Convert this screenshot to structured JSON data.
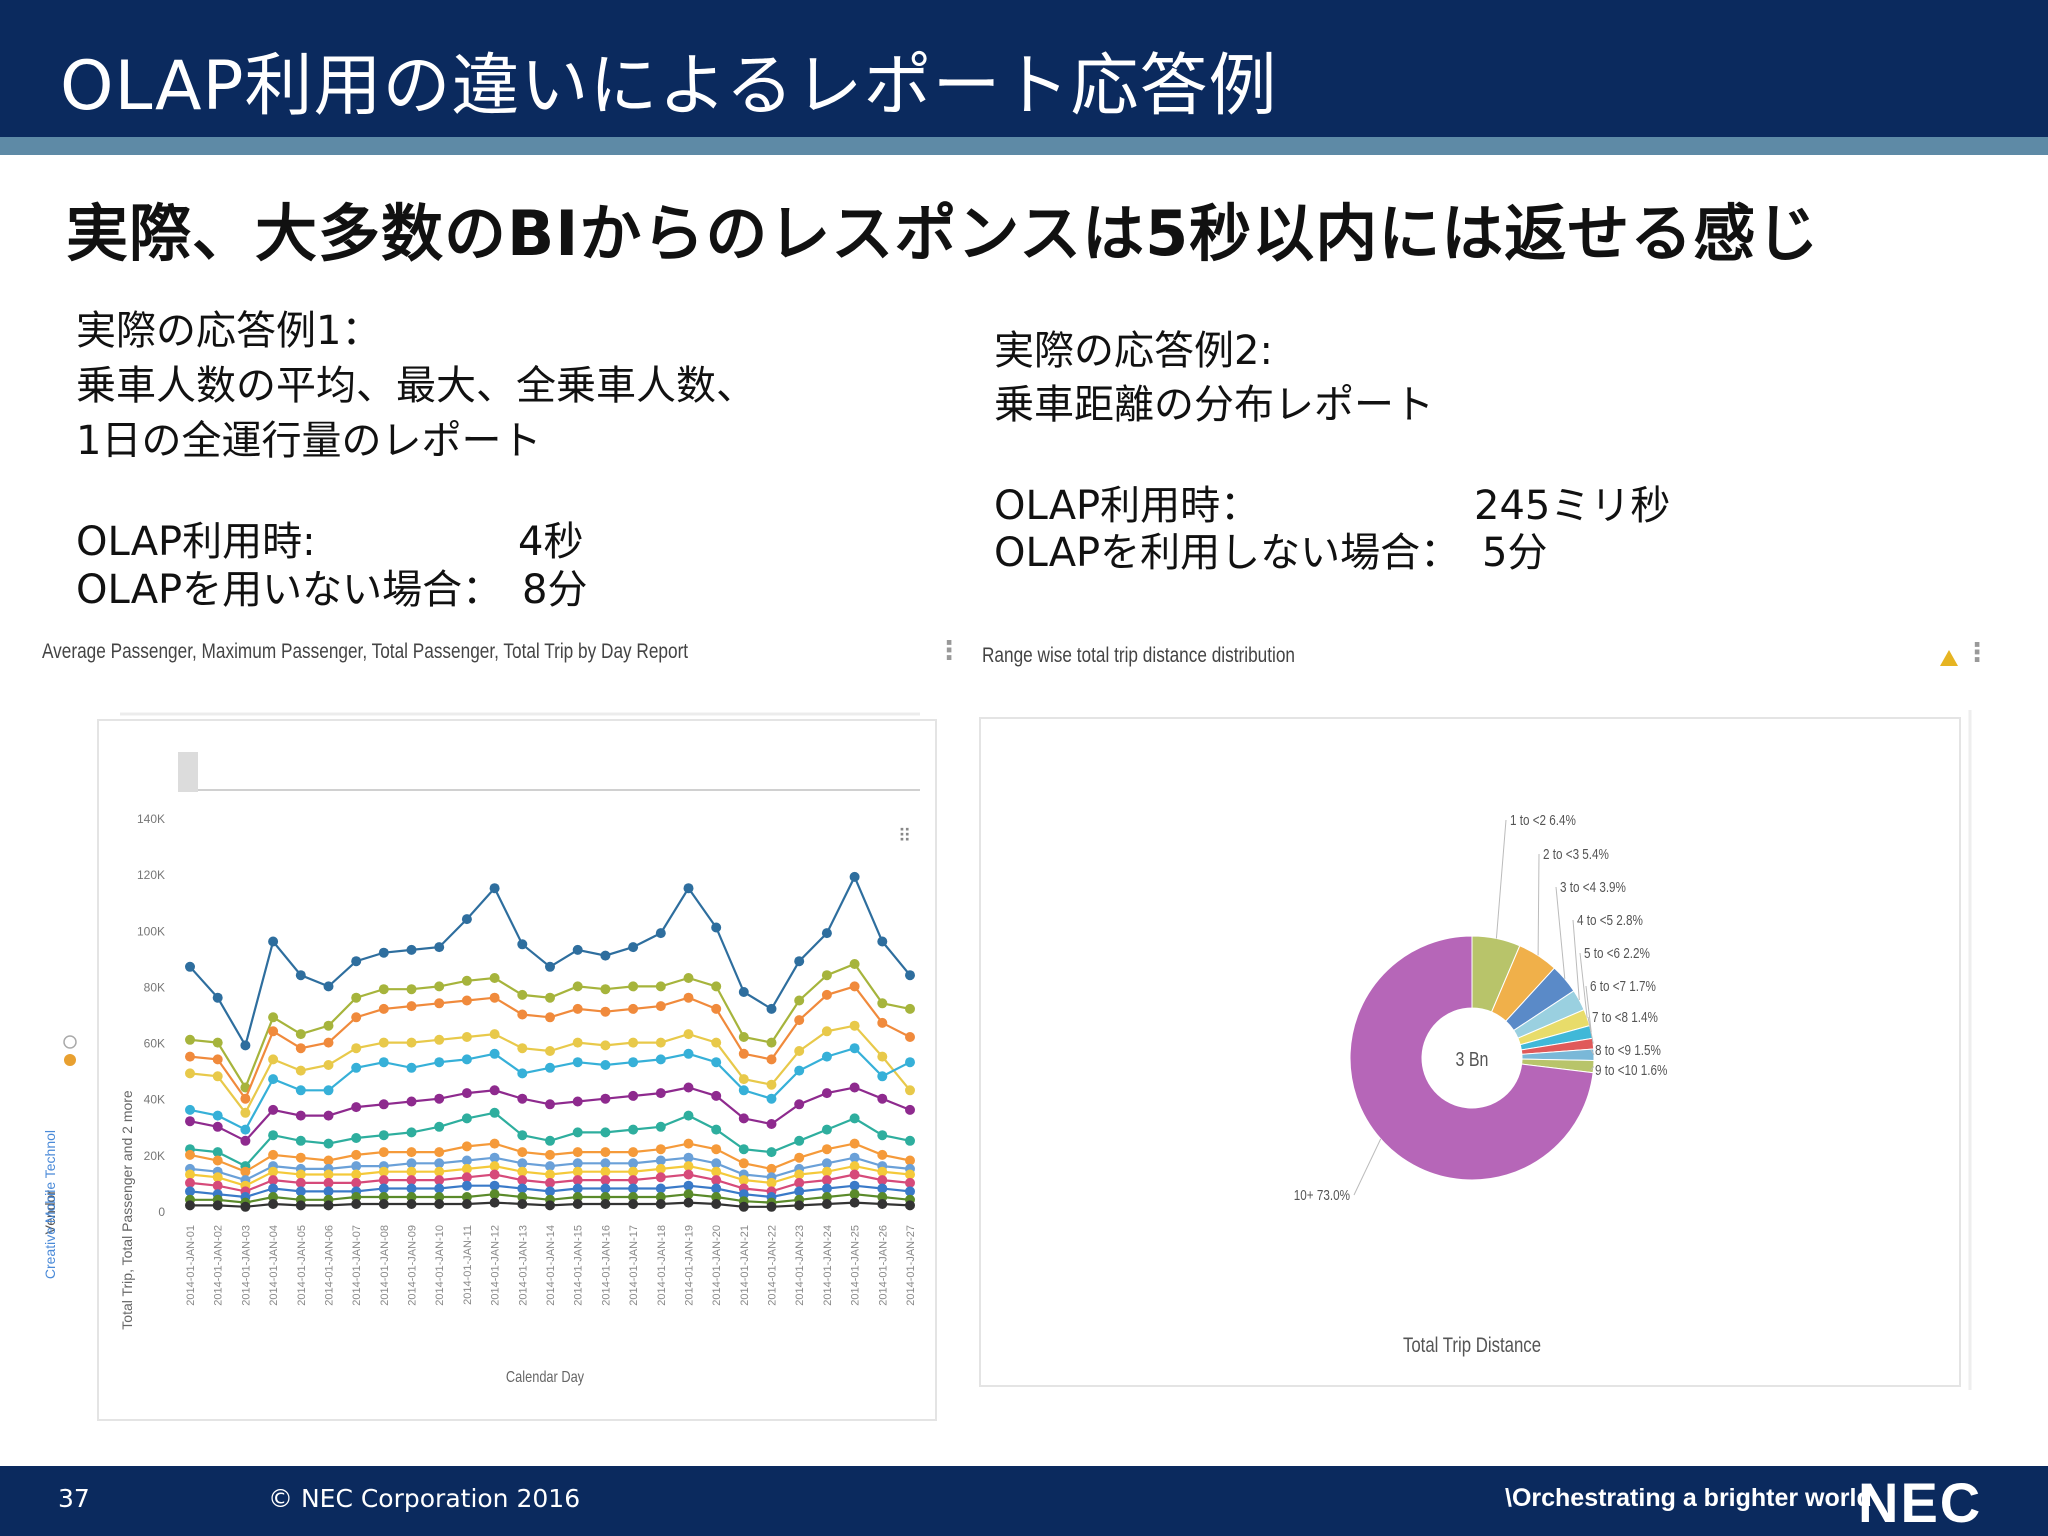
{
  "slide": {
    "title": "OLAP利用の違いによるレポート応答例",
    "headline": "実際、大多数のBIからのレスポンスは5秒以内には返せる感じ"
  },
  "example1": {
    "lines": [
      "実際の応答例1：",
      "乗車人数の平均、最大、全乗車人数、",
      "1日の全運行量のレポート"
    ],
    "olap_label": "OLAP利用時:",
    "olap_value": "4秒",
    "no_olap_label": "OLAPを用いない場合：",
    "no_olap_value": "8分"
  },
  "example2": {
    "lines": [
      "実際の応答例2:",
      "乗車距離の分布レポート"
    ],
    "olap_label": "OLAP利用時：",
    "olap_value": "245ミリ秒",
    "no_olap_label": "OLAPを利用しない場合：",
    "no_olap_value": "5分"
  },
  "line_panel": {
    "title": "Average Passenger, Maximum Passenger, Total Passenger, Total Trip by Day Report"
  },
  "pie_panel": {
    "title": "Range wise total trip distance distribution"
  },
  "footer": {
    "page_number": "37",
    "copyright": "© NEC Corporation 2016",
    "tagline": "\\Orchestrating a brighter world",
    "logo": "NEC"
  },
  "chart_data": [
    {
      "type": "line",
      "ylabel": "Total Trip, Total Passenger and 2 more",
      "xlabel": "Calendar Day",
      "legend_title": "Vendor",
      "legend_entries": [
        "Creative Mobile Technol"
      ],
      "ylim": [
        0,
        140000
      ],
      "y_ticks": [
        0,
        20000,
        40000,
        60000,
        80000,
        100000,
        120000,
        140000
      ],
      "y_tick_labels": [
        "0",
        "20K",
        "40K",
        "60K",
        "80K",
        "100K",
        "120K",
        "140K"
      ],
      "x": [
        "2014-01-JAN-01",
        "2014-01-JAN-02",
        "2014-01-JAN-03",
        "2014-01-JAN-04",
        "2014-01-JAN-05",
        "2014-01-JAN-06",
        "2014-01-JAN-07",
        "2014-01-JAN-08",
        "2014-01-JAN-09",
        "2014-01-JAN-10",
        "2014-01-JAN-11",
        "2014-01-JAN-12",
        "2014-01-JAN-13",
        "2014-01-JAN-14",
        "2014-01-JAN-15",
        "2014-01-JAN-16",
        "2014-01-JAN-17",
        "2014-01-JAN-18",
        "2014-01-JAN-19",
        "2014-01-JAN-20",
        "2014-01-JAN-21",
        "2014-01-JAN-22",
        "2014-01-JAN-23",
        "2014-01-JAN-24",
        "2014-01-JAN-25",
        "2014-01-JAN-26",
        "2014-01-JAN-27"
      ],
      "series": [
        {
          "color": "#2e6e9e",
          "values": [
            87000,
            76000,
            59000,
            96000,
            84000,
            80000,
            89000,
            92000,
            93000,
            94000,
            104000,
            115000,
            95000,
            87000,
            93000,
            91000,
            94000,
            99000,
            115000,
            101000,
            78000,
            72000,
            89000,
            99000,
            119000,
            96000,
            84000
          ]
        },
        {
          "color": "#a6b43c",
          "values": [
            61000,
            60000,
            44000,
            69000,
            63000,
            66000,
            76000,
            79000,
            79000,
            80000,
            82000,
            83000,
            77000,
            76000,
            80000,
            79000,
            80000,
            80000,
            83000,
            80000,
            62000,
            60000,
            75000,
            84000,
            88000,
            74000,
            72000
          ]
        },
        {
          "color": "#f08a3c",
          "values": [
            55000,
            54000,
            40000,
            64000,
            58000,
            60000,
            69000,
            72000,
            73000,
            74000,
            75000,
            76000,
            70000,
            69000,
            72000,
            71000,
            72000,
            73000,
            76000,
            72000,
            56000,
            54000,
            68000,
            77000,
            80000,
            67000,
            62000
          ]
        },
        {
          "color": "#e8c94a",
          "values": [
            49000,
            48000,
            35000,
            54000,
            50000,
            52000,
            58000,
            60000,
            60000,
            61000,
            62000,
            63000,
            58000,
            57000,
            60000,
            59000,
            60000,
            60000,
            63000,
            60000,
            47000,
            45000,
            57000,
            64000,
            66000,
            55000,
            43000
          ]
        },
        {
          "color": "#36b0d8",
          "values": [
            36000,
            34000,
            29000,
            47000,
            43000,
            43000,
            51000,
            53000,
            51000,
            53000,
            54000,
            56000,
            49000,
            51000,
            53000,
            52000,
            53000,
            54000,
            56000,
            53000,
            43000,
            40000,
            50000,
            55000,
            58000,
            48000,
            53000
          ]
        },
        {
          "color": "#8e2a8e",
          "values": [
            32000,
            30000,
            25000,
            36000,
            34000,
            34000,
            37000,
            38000,
            39000,
            40000,
            42000,
            43000,
            40000,
            38000,
            39000,
            40000,
            41000,
            42000,
            44000,
            41000,
            33000,
            31000,
            38000,
            42000,
            44000,
            40000,
            36000
          ]
        },
        {
          "color": "#2eae9e",
          "values": [
            22000,
            21000,
            16000,
            27000,
            25000,
            24000,
            26000,
            27000,
            28000,
            30000,
            33000,
            35000,
            27000,
            25000,
            28000,
            28000,
            29000,
            30000,
            34000,
            29000,
            22000,
            21000,
            25000,
            29000,
            33000,
            27000,
            25000
          ]
        },
        {
          "color": "#f59a3a",
          "values": [
            20000,
            18000,
            14000,
            20000,
            19000,
            18000,
            20000,
            21000,
            21000,
            21000,
            23000,
            24000,
            21000,
            20000,
            21000,
            21000,
            21000,
            22000,
            24000,
            22000,
            17000,
            15000,
            19000,
            22000,
            24000,
            20000,
            18000
          ]
        },
        {
          "color": "#6aa0d8",
          "values": [
            15000,
            14000,
            11000,
            16000,
            15000,
            15000,
            16000,
            16000,
            17000,
            17000,
            18000,
            19000,
            17000,
            16000,
            17000,
            17000,
            17000,
            18000,
            19000,
            17000,
            13000,
            12000,
            15000,
            17000,
            19000,
            16000,
            15000
          ]
        },
        {
          "color": "#f4c93a",
          "values": [
            13000,
            12000,
            9000,
            14000,
            13000,
            13000,
            13000,
            14000,
            14000,
            14000,
            15000,
            16000,
            14000,
            13000,
            14000,
            14000,
            14000,
            15000,
            16000,
            14000,
            11000,
            10000,
            13000,
            14000,
            16000,
            14000,
            13000
          ]
        },
        {
          "color": "#d64a7a",
          "values": [
            10000,
            9000,
            7000,
            11000,
            10000,
            10000,
            10000,
            11000,
            11000,
            11000,
            12000,
            13000,
            11000,
            10000,
            11000,
            11000,
            11000,
            12000,
            13000,
            11000,
            8000,
            7000,
            10000,
            11000,
            13000,
            11000,
            10000
          ]
        },
        {
          "color": "#3a7ac8",
          "values": [
            7000,
            6000,
            5000,
            8000,
            7000,
            7000,
            7000,
            8000,
            8000,
            8000,
            9000,
            9000,
            8000,
            7000,
            8000,
            8000,
            8000,
            8000,
            9000,
            8000,
            6000,
            5000,
            7000,
            8000,
            9000,
            8000,
            7000
          ]
        },
        {
          "color": "#5a8a2a",
          "values": [
            4000,
            4000,
            3000,
            5000,
            4000,
            4000,
            5000,
            5000,
            5000,
            5000,
            5000,
            6000,
            5000,
            4000,
            5000,
            5000,
            5000,
            5000,
            6000,
            5000,
            3500,
            3000,
            4000,
            5000,
            6000,
            5000,
            4000
          ]
        },
        {
          "color": "#333333",
          "values": [
            2000,
            2000,
            1500,
            2500,
            2000,
            2000,
            2500,
            2500,
            2500,
            2500,
            2500,
            3000,
            2500,
            2000,
            2500,
            2500,
            2500,
            2500,
            3000,
            2500,
            1500,
            1500,
            2000,
            2500,
            3000,
            2500,
            2000
          ]
        }
      ]
    },
    {
      "type": "pie",
      "donut": true,
      "center_label": "3 Bn",
      "xlabel": "Total Trip Distance",
      "slices": [
        {
          "label": "1 to <2",
          "value": 6.4,
          "text": "1 to <2 6.4%",
          "color": "#b8c46a"
        },
        {
          "label": "2 to <3",
          "value": 5.4,
          "text": "2 to <3 5.4%",
          "color": "#f0b04a"
        },
        {
          "label": "3 to <4",
          "value": 3.9,
          "text": "3 to <4 3.9%",
          "color": "#5a8ac8"
        },
        {
          "label": "4 to <5",
          "value": 2.8,
          "text": "4 to <5 2.8%",
          "color": "#9ad0e0"
        },
        {
          "label": "5 to <6",
          "value": 2.2,
          "text": "5 to <6 2.2%",
          "color": "#e8dc6a"
        },
        {
          "label": "6 to <7",
          "value": 1.7,
          "text": "6 to <7 1.7%",
          "color": "#40b8d8"
        },
        {
          "label": "7 to <8",
          "value": 1.4,
          "text": "7 to <8 1.4%",
          "color": "#e05a5a"
        },
        {
          "label": "8 to <9",
          "value": 1.5,
          "text": "8 to <9 1.5%",
          "color": "#7ab8d8"
        },
        {
          "label": "9 to <10",
          "value": 1.6,
          "text": "9 to <10 1.6%",
          "color": "#b8c46a"
        },
        {
          "label": "10+",
          "value": 73.0,
          "text": "10+ 73.0%",
          "color": "#b666b8"
        }
      ]
    }
  ]
}
